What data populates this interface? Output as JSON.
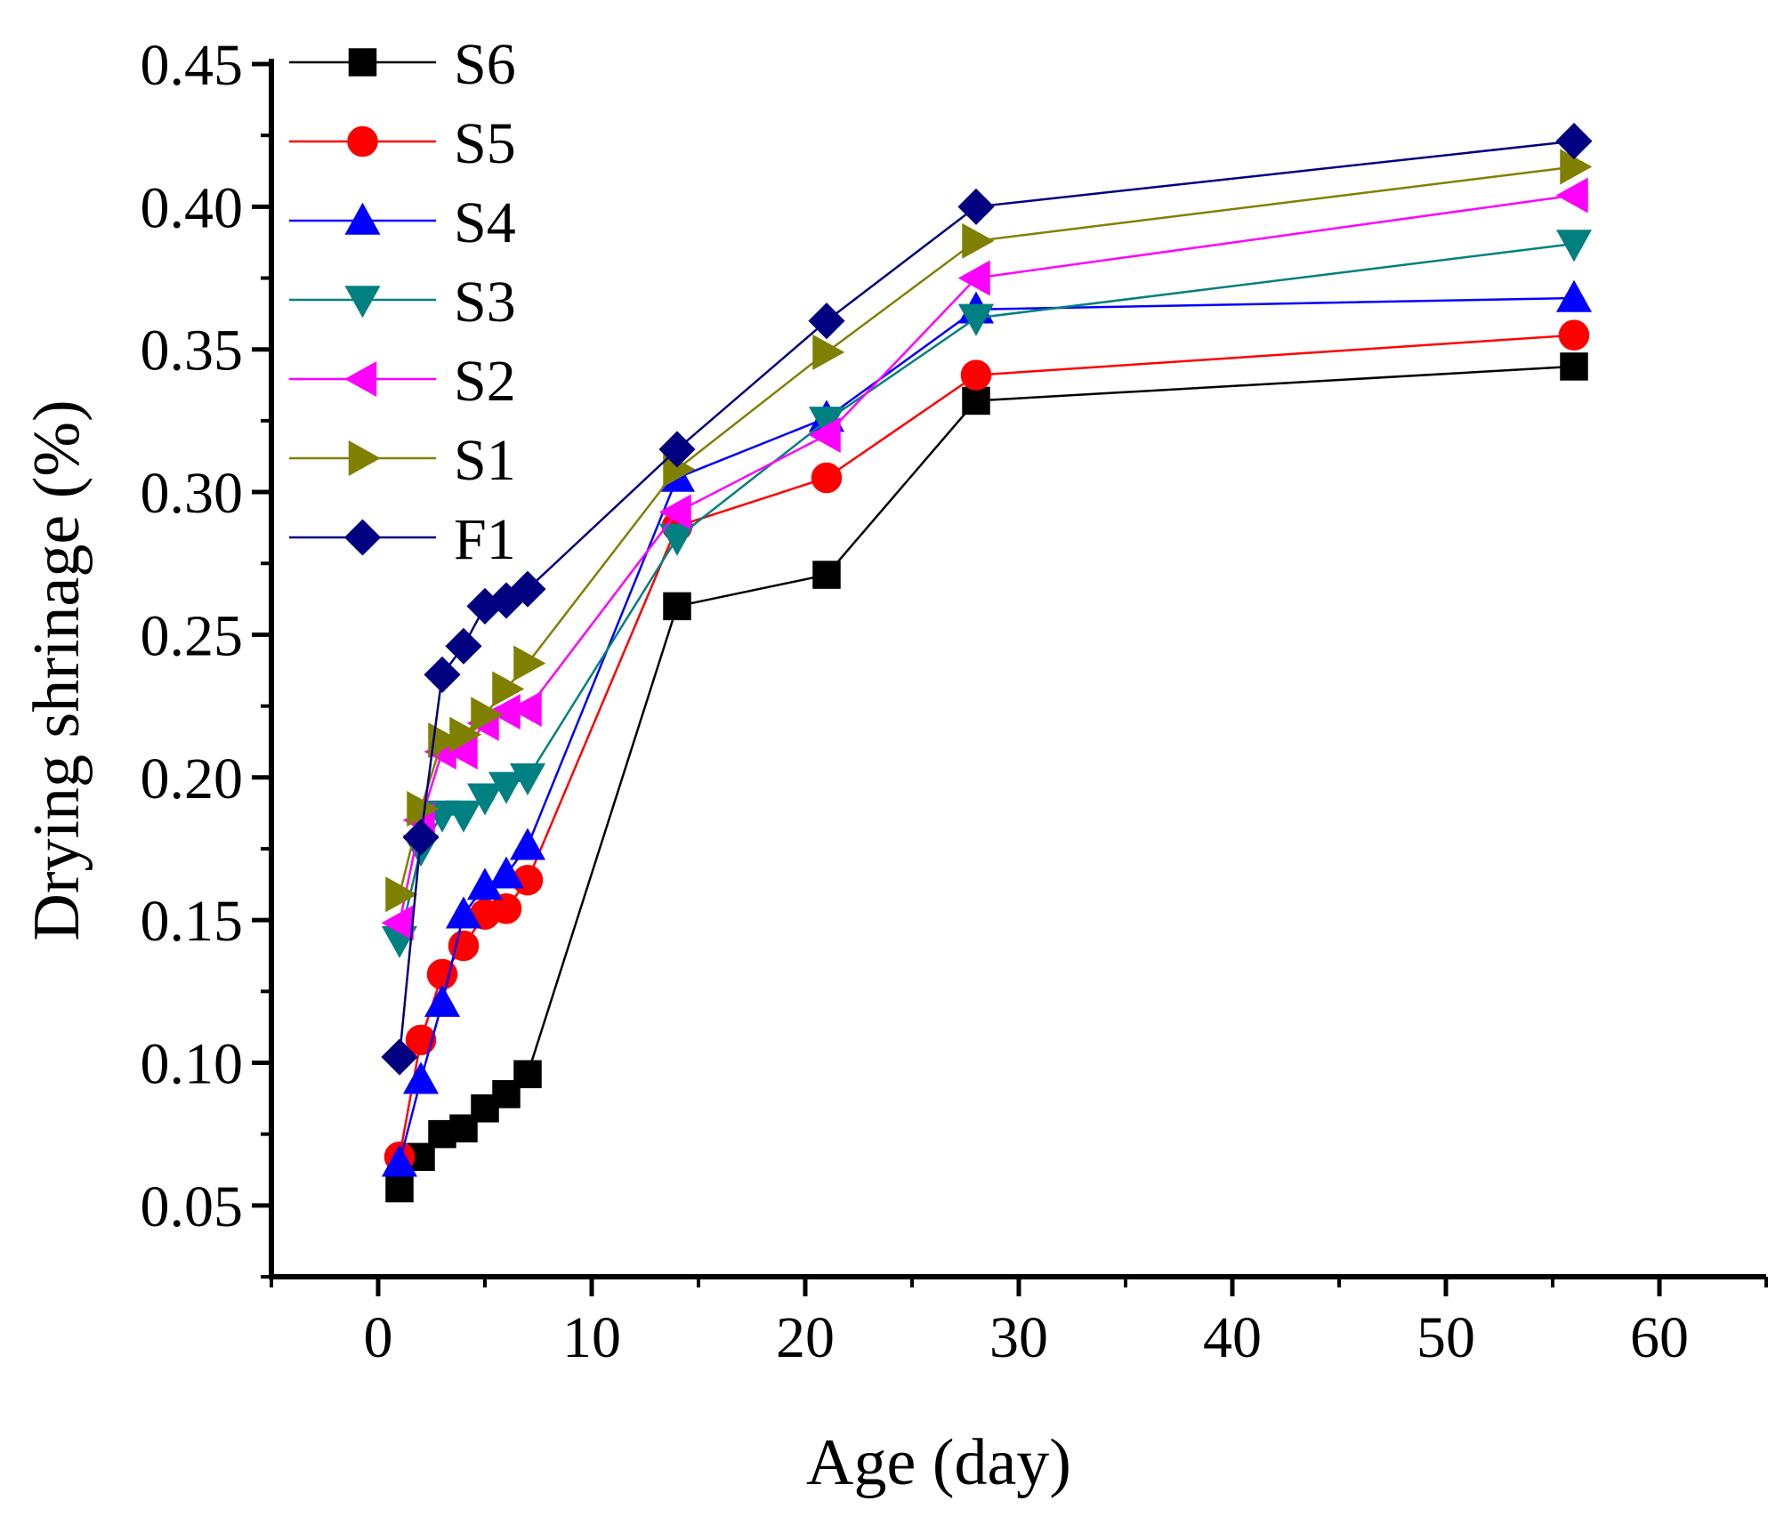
{
  "chart_data": {
    "type": "line",
    "xlabel": "Age (day)",
    "ylabel": "Drying shrinage (%)",
    "xlim": [
      -5,
      65
    ],
    "ylim": [
      0.025,
      0.45
    ],
    "xticks": [
      0,
      10,
      20,
      30,
      40,
      50,
      60
    ],
    "xtick_labels": [
      "0",
      "10",
      "20",
      "30",
      "40",
      "50",
      "60"
    ],
    "yticks": [
      0.05,
      0.1,
      0.15,
      0.2,
      0.25,
      0.3,
      0.35,
      0.4,
      0.45
    ],
    "ytick_labels": [
      "0.05",
      "0.10",
      "0.15",
      "0.20",
      "0.25",
      "0.30",
      "0.35",
      "0.40",
      "0.45"
    ],
    "legend_position": "top-left",
    "x": [
      1,
      2,
      3,
      4,
      5,
      6,
      7,
      14,
      21,
      28,
      56
    ],
    "series": [
      {
        "name": "S6",
        "color": "#000000",
        "marker": "square",
        "values": [
          0.056,
          0.067,
          0.075,
          0.077,
          0.084,
          0.089,
          0.096,
          0.26,
          0.271,
          0.332,
          0.344
        ]
      },
      {
        "name": "S5",
        "color": "#ff0000",
        "marker": "circle",
        "values": [
          0.067,
          0.108,
          0.131,
          0.141,
          0.152,
          0.154,
          0.164,
          0.288,
          0.305,
          0.341,
          0.355
        ]
      },
      {
        "name": "S4",
        "color": "#0000ff",
        "marker": "triangle-up",
        "values": [
          0.065,
          0.094,
          0.121,
          0.152,
          0.162,
          0.166,
          0.176,
          0.305,
          0.326,
          0.364,
          0.368
        ]
      },
      {
        "name": "S3",
        "color": "#008080",
        "marker": "triangle-down",
        "values": [
          0.143,
          0.175,
          0.187,
          0.187,
          0.193,
          0.197,
          0.2,
          0.284,
          0.325,
          0.361,
          0.387
        ]
      },
      {
        "name": "S2",
        "color": "#ff00ff",
        "marker": "triangle-left",
        "values": [
          0.149,
          0.185,
          0.209,
          0.209,
          0.219,
          0.223,
          0.224,
          0.293,
          0.32,
          0.375,
          0.404
        ]
      },
      {
        "name": "S1",
        "color": "#808000",
        "marker": "triangle-right",
        "values": [
          0.159,
          0.189,
          0.213,
          0.215,
          0.222,
          0.231,
          0.24,
          0.308,
          0.349,
          0.388,
          0.414
        ]
      },
      {
        "name": "F1",
        "color": "#000080",
        "marker": "diamond",
        "values": [
          0.102,
          0.179,
          0.236,
          0.246,
          0.26,
          0.262,
          0.266,
          0.315,
          0.36,
          0.4,
          0.423
        ]
      }
    ]
  }
}
